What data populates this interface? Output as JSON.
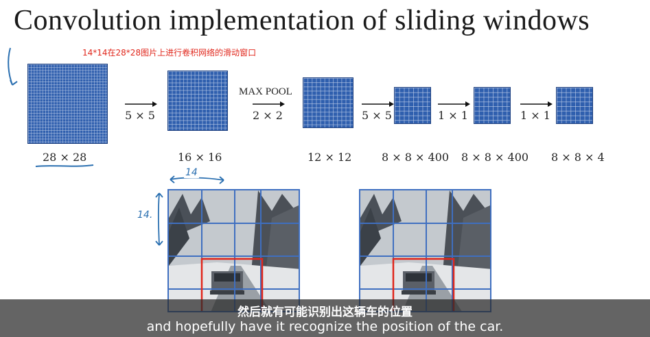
{
  "title": "Convolution implementation of sliding windows",
  "note": "14*14在28*28图片上进行卷积网络的滑动窗口",
  "pipeline": {
    "layers": [
      {
        "label": "28 × 28",
        "cells": 28
      },
      {
        "label": "16 × 16",
        "cells": 16
      },
      {
        "label": "12 × 12",
        "cells": 12
      },
      {
        "label": "8 × 8 × 400",
        "cells": 8
      },
      {
        "label": "8 × 8 × 400",
        "cells": 8
      },
      {
        "label": "8 × 8 × 4",
        "cells": 8
      }
    ],
    "ops": [
      "5 × 5",
      "2 × 2",
      "5 × 5",
      "1 × 1",
      "1 × 1"
    ],
    "maxpool_label": "MAX POOL"
  },
  "annotations": {
    "width_mark": "14",
    "height_mark": "14."
  },
  "subtitles": {
    "chinese": "然后就有可能识别出这辆车的位置",
    "english": "and hopefully have it recognize the position of the car."
  },
  "colors": {
    "block": "#2f5fae",
    "grid_line": "#c7d4ec",
    "window_box": "#e0261b",
    "photo_grid": "#3f6fc0",
    "annotation_ink": "#2a6fb0"
  }
}
